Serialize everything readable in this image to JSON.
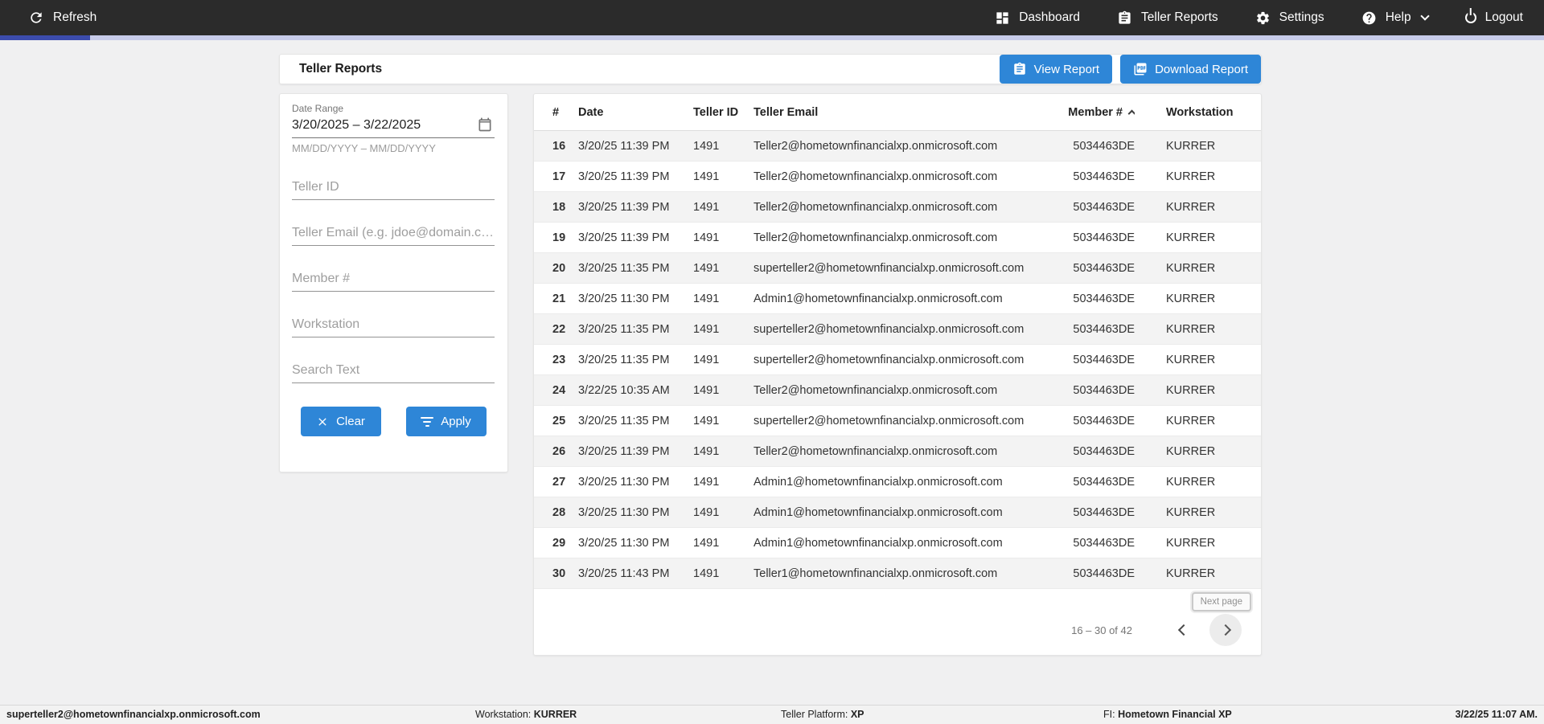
{
  "navbar": {
    "refresh_label": "Refresh",
    "items": [
      {
        "label": "Dashboard",
        "icon": "dashboard-icon"
      },
      {
        "label": "Teller Reports",
        "icon": "clipboard-icon"
      },
      {
        "label": "Settings",
        "icon": "gear-icon"
      },
      {
        "label": "Help",
        "icon": "help-icon"
      },
      {
        "label": "Logout",
        "icon": "power-icon"
      }
    ]
  },
  "header": {
    "title": "Teller Reports",
    "view_report_label": "View Report",
    "download_report_label": "Download Report"
  },
  "filters": {
    "date_range": {
      "label": "Date Range",
      "value": "3/20/2025 – 3/22/2025",
      "hint": "MM/DD/YYYY – MM/DD/YYYY"
    },
    "teller_id_placeholder": "Teller ID",
    "teller_email_placeholder": "Teller Email (e.g. jdoe@domain.c…",
    "member_placeholder": "Member #",
    "workstation_placeholder": "Workstation",
    "search_placeholder": "Search Text",
    "clear_label": "Clear",
    "apply_label": "Apply"
  },
  "table": {
    "columns": [
      "#",
      "Date",
      "Teller ID",
      "Teller Email",
      "Member #",
      "Workstation"
    ],
    "sort_column": "Member #",
    "sort_direction": "asc",
    "rows": [
      [
        "16",
        "3/20/25 11:39 PM",
        "1491",
        "Teller2@hometownfinancialxp.onmicrosoft.com",
        "5034463DE",
        "KURRER"
      ],
      [
        "17",
        "3/20/25 11:39 PM",
        "1491",
        "Teller2@hometownfinancialxp.onmicrosoft.com",
        "5034463DE",
        "KURRER"
      ],
      [
        "18",
        "3/20/25 11:39 PM",
        "1491",
        "Teller2@hometownfinancialxp.onmicrosoft.com",
        "5034463DE",
        "KURRER"
      ],
      [
        "19",
        "3/20/25 11:39 PM",
        "1491",
        "Teller2@hometownfinancialxp.onmicrosoft.com",
        "5034463DE",
        "KURRER"
      ],
      [
        "20",
        "3/20/25 11:35 PM",
        "1491",
        "superteller2@hometownfinancialxp.onmicrosoft.com",
        "5034463DE",
        "KURRER"
      ],
      [
        "21",
        "3/20/25 11:30 PM",
        "1491",
        "Admin1@hometownfinancialxp.onmicrosoft.com",
        "5034463DE",
        "KURRER"
      ],
      [
        "22",
        "3/20/25 11:35 PM",
        "1491",
        "superteller2@hometownfinancialxp.onmicrosoft.com",
        "5034463DE",
        "KURRER"
      ],
      [
        "23",
        "3/20/25 11:35 PM",
        "1491",
        "superteller2@hometownfinancialxp.onmicrosoft.com",
        "5034463DE",
        "KURRER"
      ],
      [
        "24",
        "3/22/25 10:35 AM",
        "1491",
        "Teller2@hometownfinancialxp.onmicrosoft.com",
        "5034463DE",
        "KURRER"
      ],
      [
        "25",
        "3/20/25 11:35 PM",
        "1491",
        "superteller2@hometownfinancialxp.onmicrosoft.com",
        "5034463DE",
        "KURRER"
      ],
      [
        "26",
        "3/20/25 11:39 PM",
        "1491",
        "Teller2@hometownfinancialxp.onmicrosoft.com",
        "5034463DE",
        "KURRER"
      ],
      [
        "27",
        "3/20/25 11:30 PM",
        "1491",
        "Admin1@hometownfinancialxp.onmicrosoft.com",
        "5034463DE",
        "KURRER"
      ],
      [
        "28",
        "3/20/25 11:30 PM",
        "1491",
        "Admin1@hometownfinancialxp.onmicrosoft.com",
        "5034463DE",
        "KURRER"
      ],
      [
        "29",
        "3/20/25 11:30 PM",
        "1491",
        "Admin1@hometownfinancialxp.onmicrosoft.com",
        "5034463DE",
        "KURRER"
      ],
      [
        "30",
        "3/20/25 11:43 PM",
        "1491",
        "Teller1@hometownfinancialxp.onmicrosoft.com",
        "5034463DE",
        "KURRER"
      ]
    ]
  },
  "pagination": {
    "range_label": "16 – 30 of 42",
    "next_tooltip": "Next page"
  },
  "status_bar": {
    "user_email": "superteller2@hometownfinancialxp.onmicrosoft.com",
    "workstation_label": "Workstation:",
    "workstation_value": "KURRER",
    "platform_label": "Teller Platform:",
    "platform_value": "XP",
    "fi_label": "FI:",
    "fi_value": "Hometown Financial XP",
    "datetime": "3/22/25 11:07 AM."
  },
  "colors": {
    "navbar_bg": "#2b2b2b",
    "accent_blue": "#2e86d7",
    "progress_indigo": "#3c4cad",
    "progress_track": "#c7cbe9",
    "page_bg": "#f0f0f1",
    "row_stripe": "#f3f3f3"
  }
}
